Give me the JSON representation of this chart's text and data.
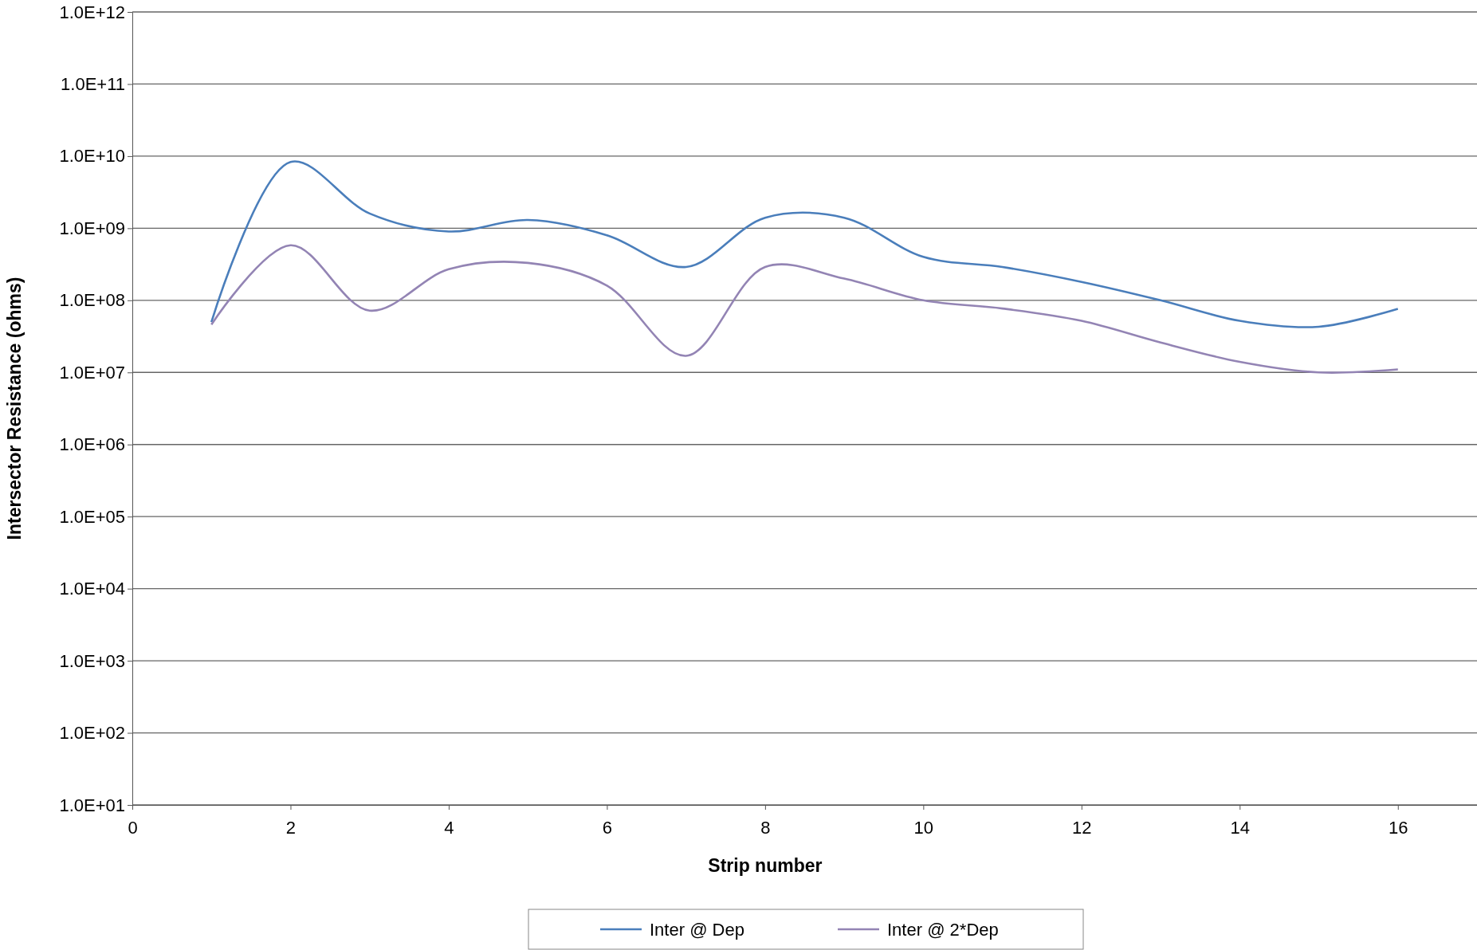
{
  "chart_data": {
    "type": "line",
    "xlabel": "Strip number",
    "ylabel": "Intersector Resistance (ohms)",
    "x": [
      1,
      2,
      3,
      4,
      5,
      6,
      7,
      8,
      9,
      10,
      11,
      12,
      13,
      14,
      15,
      16
    ],
    "series": [
      {
        "name": "Inter @ Dep",
        "color": "#4a7ebb",
        "values": [
          50000000.0,
          8300000000.0,
          1600000000.0,
          900000000.0,
          1300000000.0,
          800000000.0,
          290000000.0,
          1400000000.0,
          1400000000.0,
          400000000.0,
          290000000.0,
          180000000.0,
          100000000.0,
          52000000.0,
          43000000.0,
          76000000.0
        ]
      },
      {
        "name": "Inter @ 2*Dep",
        "color": "#9384b4",
        "values": [
          46000000.0,
          580000000.0,
          72000000.0,
          270000000.0,
          330000000.0,
          160000000.0,
          17000000.0,
          290000000.0,
          200000000.0,
          100000000.0,
          77000000.0,
          52000000.0,
          26000000.0,
          14000000.0,
          10000000.0,
          11000000.0
        ]
      }
    ],
    "log": "y",
    "xlim": [
      0,
      17
    ],
    "xticks": [
      0,
      2,
      4,
      6,
      8,
      10,
      12,
      14,
      16
    ],
    "ylim": [
      10,
      1000000000000.0
    ],
    "yticks": [
      {
        "value": 10,
        "label": "1.0E+01"
      },
      {
        "value": 100,
        "label": "1.0E+02"
      },
      {
        "value": 1000,
        "label": "1.0E+03"
      },
      {
        "value": 10000,
        "label": "1.0E+04"
      },
      {
        "value": 100000,
        "label": "1.0E+05"
      },
      {
        "value": 1000000,
        "label": "1.0E+06"
      },
      {
        "value": 10000000,
        "label": "1.0E+07"
      },
      {
        "value": 100000000,
        "label": "1.0E+08"
      },
      {
        "value": 1000000000,
        "label": "1.0E+09"
      },
      {
        "value": 10000000000,
        "label": "1.0E+10"
      },
      {
        "value": 100000000000,
        "label": "1.0E+11"
      },
      {
        "value": 1000000000000,
        "label": "1.0E+12"
      }
    ],
    "grid": "y",
    "legend": "bottom",
    "marker": "none",
    "line_style": "solid"
  }
}
